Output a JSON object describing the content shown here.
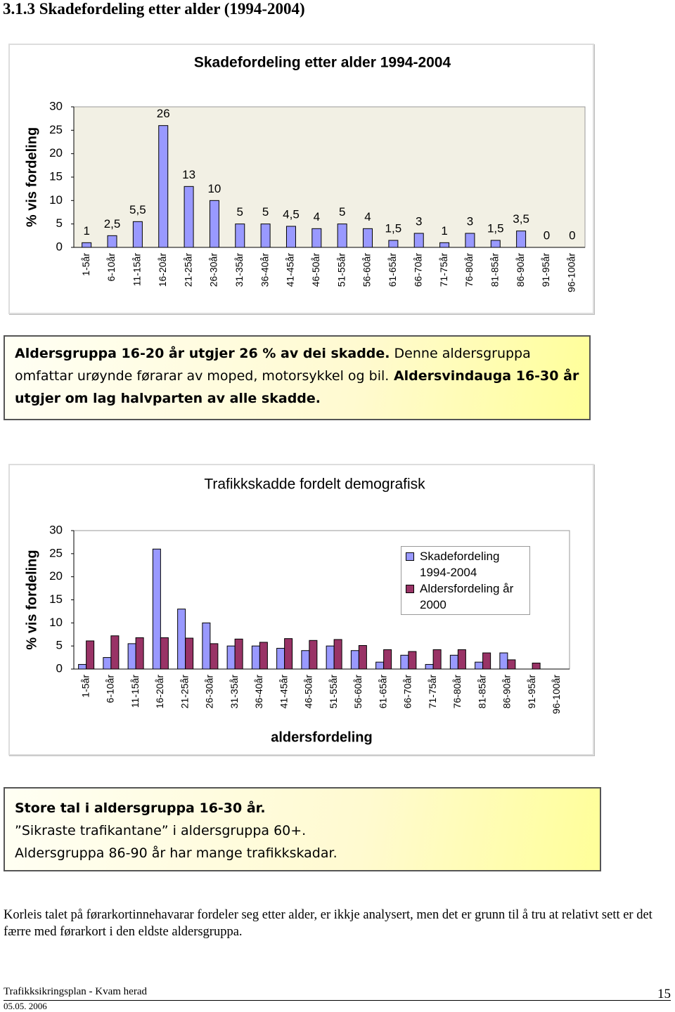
{
  "heading": "3.1.3 Skadefordeling etter alder (1994-2004)",
  "chart_data": [
    {
      "type": "bar",
      "title": "Skadefordeling etter alder 1994-2004",
      "y_label": "% vis fordeling",
      "categories": [
        "1-5år",
        "6-10år",
        "11-15år",
        "16-20år",
        "21-25år",
        "26-30år",
        "31-35år",
        "36-40år",
        "41-45år",
        "46-50år",
        "51-55år",
        "56-60år",
        "61-65år",
        "66-70år",
        "71-75år",
        "76-80år",
        "81-85år",
        "86-90år",
        "91-95år",
        "96-100år"
      ],
      "values": [
        1,
        2.5,
        5.5,
        26,
        13,
        10,
        5,
        5,
        4.5,
        4,
        5,
        4,
        1.5,
        3,
        1,
        3,
        1.5,
        3.5,
        0,
        0
      ],
      "value_labels": [
        "1",
        "2,5",
        "5,5",
        "26",
        "13",
        "10",
        "5",
        "5",
        "4,5",
        "4",
        "5",
        "4",
        "1,5",
        "3",
        "1",
        "3",
        "1,5",
        "3,5",
        "0",
        "0"
      ],
      "color": "#9999ff",
      "ylim": [
        0,
        30
      ],
      "yticks": [
        0,
        5,
        10,
        15,
        20,
        25,
        30
      ],
      "grid": false
    },
    {
      "type": "grouped-bar",
      "title": "Trafikkskadde fordelt demografisk",
      "y_label": "% vis fordeling",
      "x_label": "aldersfordeling",
      "categories": [
        "1-5år",
        "6-10år",
        "11-15år",
        "16-20år",
        "21-25år",
        "26-30år",
        "31-35år",
        "36-40år",
        "41-45år",
        "46-50år",
        "51-55år",
        "56-60år",
        "61-65år",
        "66-70år",
        "71-75år",
        "76-80år",
        "81-85år",
        "86-90år",
        "91-95år",
        "96-100år"
      ],
      "series": [
        {
          "name": "Skadefordeling 1994-2004",
          "color": "#9999ff",
          "values": [
            1,
            2.5,
            5.5,
            26,
            13,
            10,
            5,
            5,
            4.5,
            4,
            5,
            4,
            1.5,
            3,
            1,
            3,
            1.5,
            3.5,
            0,
            0
          ]
        },
        {
          "name": "Aldersfordeling år 2000",
          "color": "#993366",
          "values": [
            6.1,
            7.2,
            6.8,
            6.8,
            6.7,
            5.5,
            6.5,
            5.8,
            6.6,
            6.2,
            6.4,
            5.1,
            4.2,
            3.8,
            4.2,
            4.2,
            3.5,
            2.0,
            1.3,
            0
          ]
        }
      ],
      "ylim": [
        0,
        30
      ],
      "yticks": [
        0,
        5,
        10,
        15,
        20,
        25,
        30
      ],
      "grid": false,
      "legend": "upper right"
    }
  ],
  "callout_1": [
    {
      "text": "Aldersgruppa 16-20 år utgjer 26 % av dei skadde.",
      "bold": true
    },
    {
      "text": " Denne aldersgruppa omfattar urøynde førarar av moped, motorsykkel og bil.",
      "bold": false
    },
    {
      "text": " Aldersvindauga 16-30 år utgjer om lag halvparten av alle skadde.",
      "bold": true
    }
  ],
  "callout_2": [
    {
      "text": "Store tal i aldersgruppa 16-30 år.",
      "bold": true
    },
    {
      "text": "”Sikraste trafikantane” i aldersgruppa 60+.",
      "bold": false
    },
    {
      "text": "Aldersgruppa 86-90 år har mange trafikkskadar.",
      "bold": false
    }
  ],
  "paragraph": "Korleis talet på førarkortinnehavarar fordeler seg etter alder, er ikkje analysert, men det er grunn til å tru at relativt sett er det færre med førarkort i den eldste aldersgruppa.",
  "footer": {
    "left": "Trafikksikringsplan - Kvam herad",
    "date": "05.05. 2006",
    "page": "15"
  }
}
